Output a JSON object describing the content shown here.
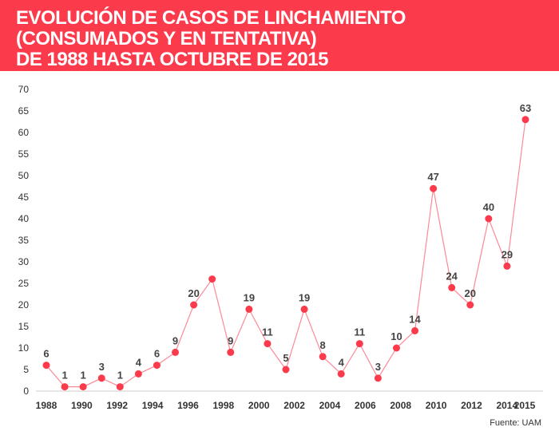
{
  "header": {
    "title_lines": [
      "EVOLUCIÓN DE CASOS DE LINCHAMIENTO",
      "(CONSUMADOS Y EN TENTATIVA)",
      "DE 1988 HASTA OCTUBRE DE 2015"
    ],
    "color": "#fb3a4c"
  },
  "chart_data": {
    "type": "line",
    "title": "EVOLUCIÓN DE CASOS DE LINCHAMIENTO (CONSUMADOS Y EN TENTATIVA) DE 1988 HASTA OCTUBRE DE 2015",
    "xlabel": "",
    "ylabel": "",
    "ylim": [
      0,
      70
    ],
    "yticks": [
      0,
      5,
      10,
      15,
      20,
      25,
      30,
      35,
      40,
      45,
      50,
      55,
      60,
      65,
      70
    ],
    "xticks": [
      "1988",
      "1990",
      "1992",
      "1994",
      "1996",
      "1998",
      "2000",
      "2002",
      "2004",
      "2006",
      "2008",
      "2010",
      "2012",
      "2014",
      "2015"
    ],
    "xtick_years": [
      1988,
      1990,
      1992,
      1994,
      1996,
      1998,
      2000,
      2002,
      2004,
      2006,
      2008,
      2010,
      2012,
      2014,
      2015
    ],
    "values": [
      6,
      1,
      1,
      3,
      1,
      4,
      6,
      9,
      20,
      26,
      9,
      19,
      11,
      5,
      19,
      8,
      4,
      11,
      3,
      10,
      14,
      47,
      24,
      20,
      40,
      29,
      63
    ],
    "labels": [
      "6",
      "1",
      "1",
      "3",
      "1",
      "4",
      "6",
      "9",
      "20",
      "",
      "9",
      "19",
      "11",
      "5",
      "19",
      "8",
      "4",
      "11",
      "3",
      "10",
      "14",
      "47",
      "24",
      "20",
      "40",
      "29",
      "63"
    ],
    "color": "#fb3a4c",
    "line_color": "#fb8a95",
    "grid": false
  },
  "source": "Fuente: UAM"
}
